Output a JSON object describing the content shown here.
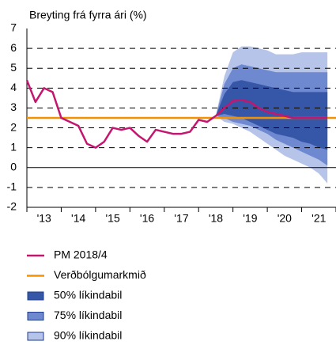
{
  "chart_data": {
    "type": "fan",
    "title": "Breyting frá fyrra ári (%)",
    "xlim": [
      2013,
      2022
    ],
    "xticks": [
      {
        "value": 2013.5,
        "label": "'13"
      },
      {
        "value": 2014.5,
        "label": "'14"
      },
      {
        "value": 2015.5,
        "label": "'15"
      },
      {
        "value": 2016.5,
        "label": "'16"
      },
      {
        "value": 2017.5,
        "label": "'17"
      },
      {
        "value": 2018.5,
        "label": "'18"
      },
      {
        "value": 2019.5,
        "label": "'19"
      },
      {
        "value": 2020.5,
        "label": "'20"
      },
      {
        "value": 2021.5,
        "label": "'21"
      }
    ],
    "xminor_ticks": [
      2013,
      2014,
      2015,
      2016,
      2017,
      2018,
      2019,
      2020,
      2021,
      2022
    ],
    "ylim": [
      -2,
      7
    ],
    "yticks": [
      -2,
      -1,
      0,
      1,
      2,
      3,
      4,
      5,
      6,
      7
    ],
    "grid": true,
    "x": [
      2013,
      2013.25,
      2013.5,
      2013.75,
      2014,
      2014.25,
      2014.5,
      2014.75,
      2015,
      2015.25,
      2015.5,
      2015.75,
      2016,
      2016.25,
      2016.5,
      2016.75,
      2017,
      2017.25,
      2017.5,
      2017.75,
      2018,
      2018.25,
      2018.5,
      2018.75,
      2019,
      2019.25,
      2019.5,
      2019.75,
      2020,
      2020.25,
      2020.5,
      2020.75,
      2021,
      2021.25,
      2021.5,
      2021.75
    ],
    "series": [
      {
        "name": "PM 2018/4",
        "color": "#c3166f",
        "values": [
          4.4,
          3.3,
          4.0,
          3.8,
          2.5,
          2.3,
          2.1,
          1.2,
          1.0,
          1.3,
          2.0,
          1.9,
          2.0,
          1.6,
          1.3,
          1.9,
          1.8,
          1.7,
          1.7,
          1.8,
          2.4,
          2.3,
          2.6,
          3.0,
          3.35,
          3.4,
          3.3,
          3.0,
          2.8,
          2.7,
          2.6,
          2.5,
          2.5,
          2.5,
          2.5,
          2.5
        ]
      }
    ],
    "reference_lines": [
      {
        "name": "Verðbólgumarkmið",
        "color": "#f39200",
        "value": 2.5
      }
    ],
    "fan_x": [
      2018.5,
      2018.75,
      2019,
      2019.25,
      2019.5,
      2019.75,
      2020,
      2020.25,
      2020.5,
      2020.75,
      2021,
      2021.25,
      2021.5,
      2021.75
    ],
    "bands": [
      {
        "name": "50% líkindabil",
        "color": "#3656a8",
        "lower": [
          2.6,
          2.7,
          2.6,
          2.5,
          2.3,
          2.1,
          1.9,
          1.7,
          1.6,
          1.5,
          1.3,
          1.2,
          1.0,
          0.9
        ],
        "upper": [
          2.6,
          3.7,
          4.3,
          4.4,
          4.3,
          4.2,
          4.1,
          4.0,
          3.9,
          3.8,
          3.8,
          3.8,
          3.8,
          3.8
        ]
      },
      {
        "name": "75% líkindabil",
        "color": "#6e89cf",
        "lower": [
          2.6,
          2.5,
          2.3,
          2.2,
          2.1,
          1.9,
          1.7,
          1.4,
          1.2,
          1.0,
          0.8,
          0.6,
          0.4,
          0.1
        ],
        "upper": [
          2.6,
          4.2,
          5.0,
          5.2,
          5.1,
          5.0,
          4.9,
          4.8,
          4.8,
          4.8,
          4.8,
          4.8,
          4.8,
          4.8
        ]
      },
      {
        "name": "90% líkindabil",
        "color": "#b7c4ea",
        "lower": [
          2.6,
          2.3,
          2.2,
          2.0,
          1.8,
          1.5,
          1.2,
          0.9,
          0.6,
          0.4,
          0.2,
          0.0,
          -0.3,
          -0.8
        ],
        "upper": [
          2.6,
          4.6,
          5.8,
          6.1,
          6.1,
          6.0,
          5.9,
          5.7,
          5.7,
          5.7,
          5.8,
          5.8,
          5.8,
          5.8
        ]
      }
    ]
  }
}
